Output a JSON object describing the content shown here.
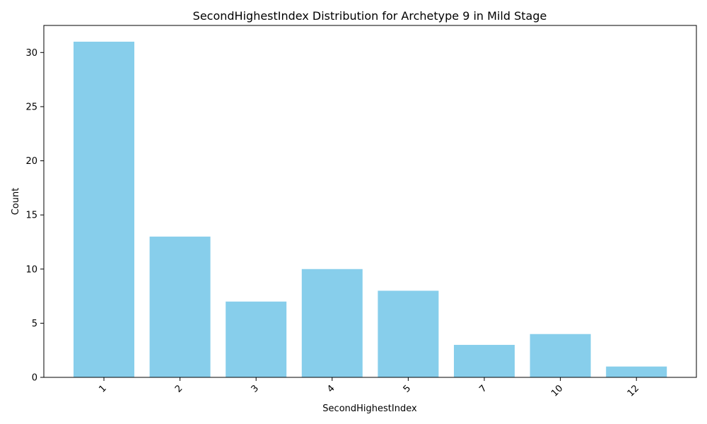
{
  "chart_data": {
    "type": "bar",
    "title": "SecondHighestIndex Distribution for Archetype 9 in Mild Stage",
    "xlabel": "SecondHighestIndex",
    "ylabel": "Count",
    "categories": [
      "1",
      "2",
      "3",
      "4",
      "5",
      "7",
      "10",
      "12"
    ],
    "values": [
      31,
      13,
      7,
      10,
      8,
      3,
      4,
      1
    ],
    "ylim": [
      0,
      32.5
    ],
    "yticks": [
      0,
      5,
      10,
      15,
      20,
      25,
      30
    ],
    "bar_color": "#87CEEB",
    "grid": false,
    "xtick_rotation_deg": 45
  }
}
